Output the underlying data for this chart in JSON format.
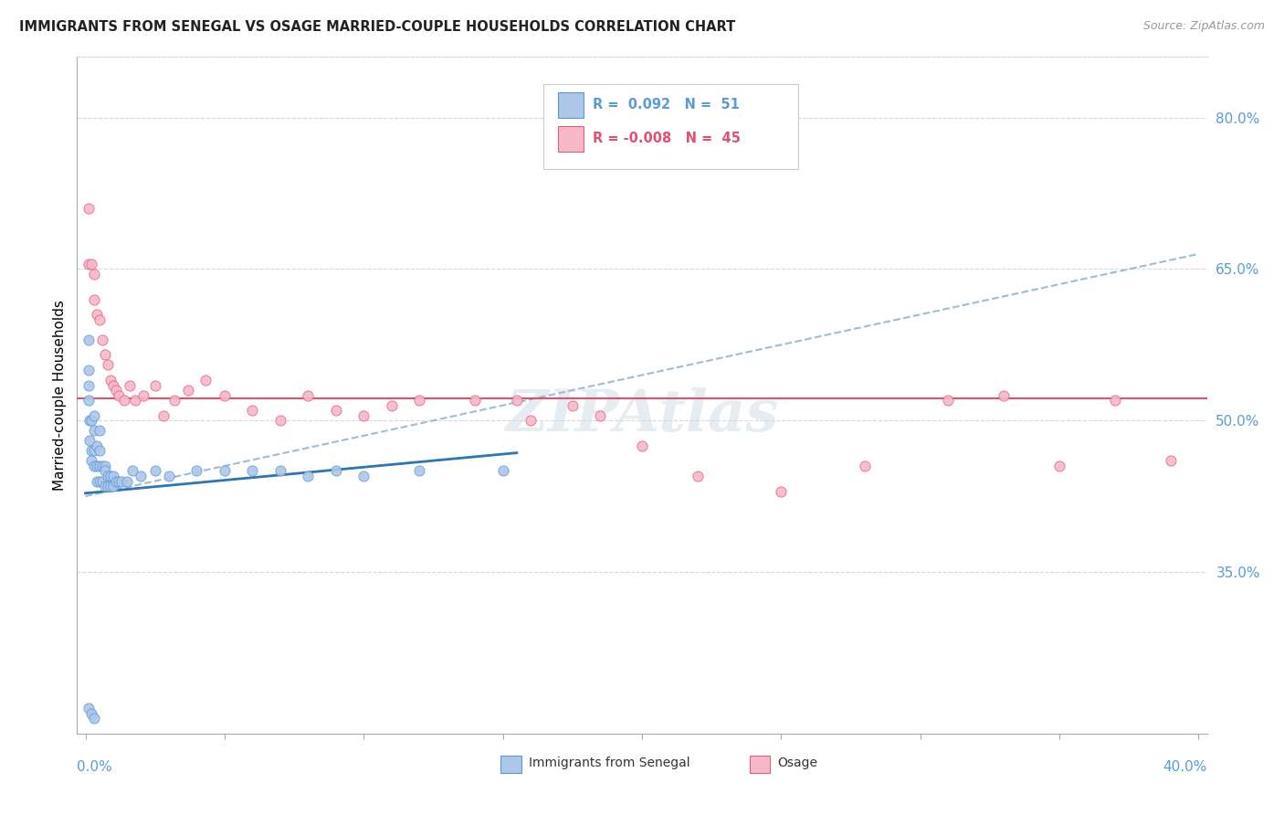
{
  "title": "IMMIGRANTS FROM SENEGAL VS OSAGE MARRIED-COUPLE HOUSEHOLDS CORRELATION CHART",
  "source": "Source: ZipAtlas.com",
  "ylabel": "Married-couple Households",
  "watermark": "ZIPAtlas",
  "blue_scatter_color": "#aec6e8",
  "blue_edge_color": "#5b9bd5",
  "pink_scatter_color": "#f7b8c8",
  "pink_edge_color": "#e06080",
  "pink_line_color": "#e05070",
  "blue_line_color": "#2e75b6",
  "dashed_line_color": "#a0bcd0",
  "grid_color": "#d8d8d8",
  "right_tick_color": "#5b9bd5",
  "xlim": [
    0.0,
    0.4
  ],
  "ylim": [
    0.19,
    0.86
  ],
  "right_ytick_vals": [
    0.35,
    0.5,
    0.65,
    0.8
  ],
  "right_ytick_labels": [
    "35.0%",
    "50.0%",
    "65.0%",
    "80.0%"
  ],
  "osage_flat_line_y": 0.522,
  "senegal_line_x": [
    0.0,
    0.155
  ],
  "senegal_line_y": [
    0.428,
    0.468
  ],
  "dashed_line_x": [
    0.0,
    0.4
  ],
  "dashed_line_y": [
    0.425,
    0.665
  ],
  "senegal_x": [
    0.001,
    0.001,
    0.001,
    0.001,
    0.0015,
    0.0015,
    0.002,
    0.002,
    0.002,
    0.003,
    0.003,
    0.003,
    0.003,
    0.004,
    0.004,
    0.004,
    0.005,
    0.005,
    0.005,
    0.005,
    0.006,
    0.006,
    0.007,
    0.007,
    0.007,
    0.008,
    0.008,
    0.009,
    0.009,
    0.01,
    0.01,
    0.011,
    0.012,
    0.013,
    0.015,
    0.017,
    0.02,
    0.025,
    0.03,
    0.04,
    0.05,
    0.06,
    0.07,
    0.08,
    0.09,
    0.1,
    0.12,
    0.15,
    0.001,
    0.002,
    0.003
  ],
  "senegal_y": [
    0.58,
    0.55,
    0.535,
    0.52,
    0.5,
    0.48,
    0.5,
    0.47,
    0.46,
    0.505,
    0.49,
    0.47,
    0.455,
    0.475,
    0.455,
    0.44,
    0.49,
    0.47,
    0.455,
    0.44,
    0.455,
    0.44,
    0.455,
    0.45,
    0.435,
    0.445,
    0.435,
    0.445,
    0.435,
    0.445,
    0.435,
    0.44,
    0.44,
    0.44,
    0.44,
    0.45,
    0.445,
    0.45,
    0.445,
    0.45,
    0.45,
    0.45,
    0.45,
    0.445,
    0.45,
    0.445,
    0.45,
    0.45,
    0.215,
    0.21,
    0.205
  ],
  "osage_x": [
    0.001,
    0.001,
    0.002,
    0.003,
    0.003,
    0.004,
    0.005,
    0.006,
    0.007,
    0.008,
    0.009,
    0.01,
    0.011,
    0.012,
    0.014,
    0.016,
    0.018,
    0.021,
    0.025,
    0.028,
    0.032,
    0.037,
    0.043,
    0.05,
    0.06,
    0.07,
    0.08,
    0.09,
    0.1,
    0.11,
    0.12,
    0.14,
    0.155,
    0.16,
    0.175,
    0.185,
    0.2,
    0.22,
    0.25,
    0.28,
    0.31,
    0.33,
    0.35,
    0.37,
    0.39
  ],
  "osage_y": [
    0.71,
    0.655,
    0.655,
    0.645,
    0.62,
    0.605,
    0.6,
    0.58,
    0.565,
    0.555,
    0.54,
    0.535,
    0.53,
    0.525,
    0.52,
    0.535,
    0.52,
    0.525,
    0.535,
    0.505,
    0.52,
    0.53,
    0.54,
    0.525,
    0.51,
    0.5,
    0.525,
    0.51,
    0.505,
    0.515,
    0.52,
    0.52,
    0.52,
    0.5,
    0.515,
    0.505,
    0.475,
    0.445,
    0.43,
    0.455,
    0.52,
    0.525,
    0.455,
    0.52,
    0.46
  ]
}
